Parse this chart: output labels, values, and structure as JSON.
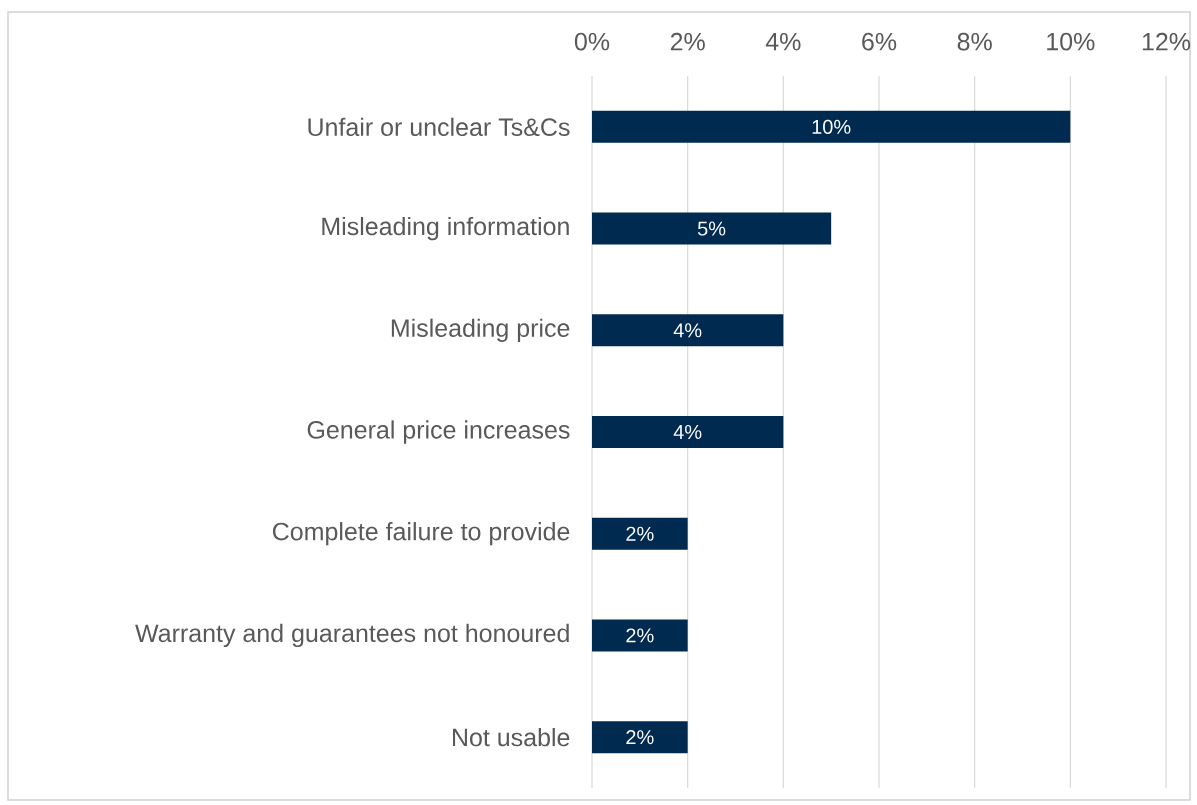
{
  "chart_data": {
    "type": "bar",
    "orientation": "horizontal",
    "categories": [
      "Unfair or unclear Ts&Cs",
      "Misleading information",
      "Misleading price",
      "General price increases",
      "Complete failure to provide",
      "Warranty and guarantees not honoured",
      "Not usable"
    ],
    "values": [
      10,
      5,
      4,
      4,
      2,
      2,
      2
    ],
    "value_labels": [
      "10%",
      "5%",
      "4%",
      "4%",
      "2%",
      "2%",
      "2%"
    ],
    "color": "#002a50",
    "xlim": [
      0,
      12
    ],
    "xticks": [
      {
        "value": 0,
        "label": "0%"
      },
      {
        "value": 2,
        "label": "2%"
      },
      {
        "value": 4,
        "label": "4%"
      },
      {
        "value": 6,
        "label": "6%"
      },
      {
        "value": 8,
        "label": "8%"
      },
      {
        "value": 10,
        "label": "10%"
      },
      {
        "value": 12,
        "label": "12%"
      }
    ],
    "grid": "x"
  }
}
